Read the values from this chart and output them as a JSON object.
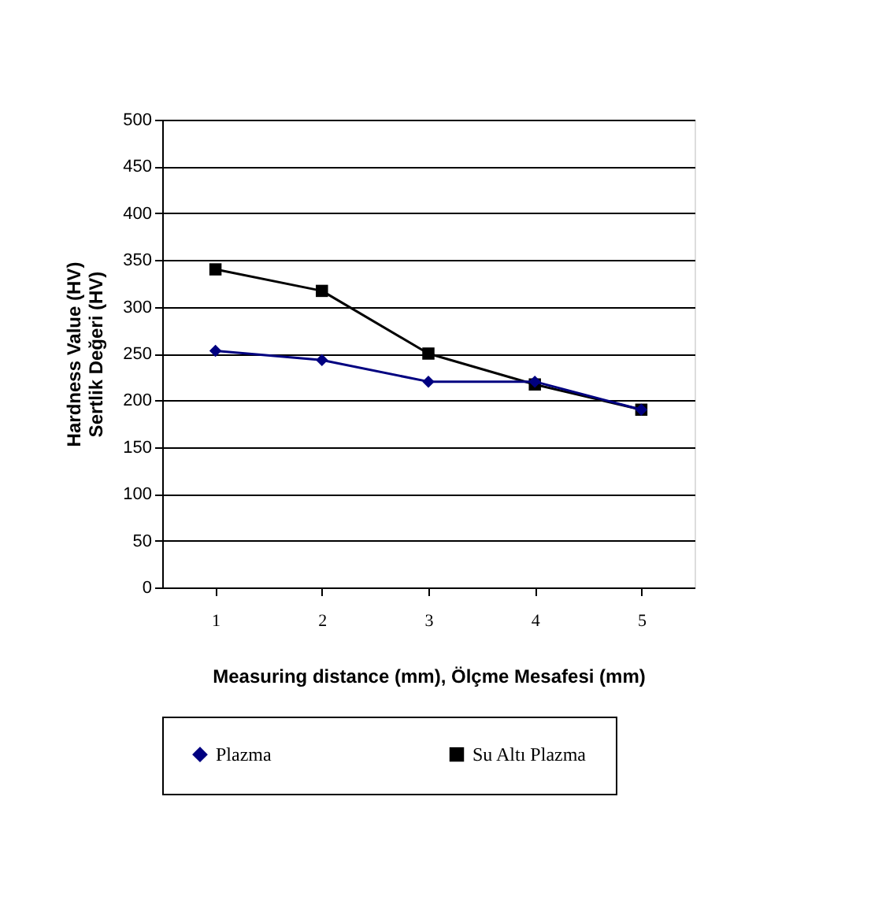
{
  "chart_data": {
    "type": "line",
    "xlabel": "Measuring distance (mm), Ölçme Mesafesi (mm)",
    "ylabel": "Hardness Value (HV)\nSertlik Değeri (HV)",
    "categories": [
      "1",
      "2",
      "3",
      "4",
      "5"
    ],
    "series": [
      {
        "name": "Plazma",
        "color": "#000080",
        "marker": "diamond",
        "values": [
          253,
          243,
          220,
          220,
          190
        ]
      },
      {
        "name": "Su Altı Plazma",
        "color": "#000000",
        "marker": "square",
        "values": [
          340,
          317,
          250,
          217,
          190
        ]
      }
    ],
    "ylim": [
      0,
      500
    ],
    "yticks": [
      0,
      50,
      100,
      150,
      200,
      250,
      300,
      350,
      400,
      450,
      500
    ],
    "grid": "y",
    "legend": "bottom",
    "line_style": "solid"
  }
}
